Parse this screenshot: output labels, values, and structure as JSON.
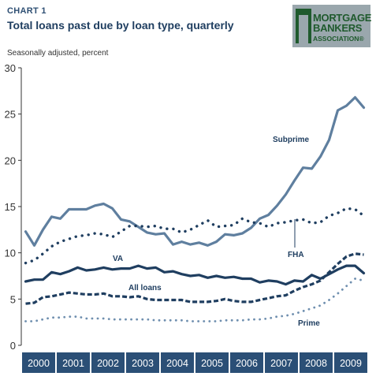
{
  "header": {
    "label": "CHART 1",
    "title": "Total loans past due by loan type, quarterly",
    "subtitle": "Seasonally adjusted, percent"
  },
  "logo": {
    "line1": "MORTGAGE",
    "line2": "BANKERS",
    "line3": "ASSOCIATION®",
    "color": "#1f5a2d",
    "background": "#9aa7ad"
  },
  "colors": {
    "series": "#1f3e60",
    "subprime": "#5f7f9f",
    "prime": "#6f8faf",
    "axis_band": "#2b4f76"
  },
  "chart_data": {
    "type": "line",
    "title": "Total loans past due by loan type, quarterly",
    "ylabel": "Seasonally adjusted, percent",
    "xlabel": "",
    "ylim": [
      0,
      30
    ],
    "yticks": [
      0,
      5,
      10,
      15,
      20,
      25,
      30
    ],
    "years": [
      "2000",
      "2001",
      "2002",
      "2003",
      "2004",
      "2005",
      "2006",
      "2007",
      "2008",
      "2009"
    ],
    "quarters_per_year": 4,
    "legend": "inline labels",
    "grid": false,
    "series": [
      {
        "name": "Subprime",
        "style": "solid-thick",
        "color": "#5f7f9f",
        "values": [
          12.3,
          10.8,
          12.5,
          13.9,
          13.7,
          14.7,
          14.7,
          14.7,
          15.1,
          15.3,
          14.8,
          13.6,
          13.4,
          12.8,
          12.2,
          12.0,
          12.1,
          10.9,
          11.2,
          10.9,
          11.1,
          10.8,
          11.2,
          12.0,
          11.9,
          12.1,
          12.7,
          13.7,
          14.1,
          15.1,
          16.3,
          17.8,
          19.2,
          19.1,
          20.4,
          22.2,
          25.4,
          25.9,
          26.8,
          25.7
        ]
      },
      {
        "name": "FHA",
        "style": "dotted-large",
        "color": "#1f3e60",
        "values": [
          8.9,
          9.2,
          9.9,
          10.7,
          11.2,
          11.5,
          11.8,
          11.9,
          12.1,
          12.0,
          11.7,
          12.3,
          12.9,
          12.9,
          12.8,
          12.9,
          12.6,
          12.6,
          12.2,
          12.5,
          13.0,
          13.5,
          12.8,
          12.9,
          13.0,
          13.7,
          13.3,
          13.2,
          12.8,
          13.2,
          13.3,
          13.5,
          13.6,
          13.2,
          13.3,
          14.0,
          14.3,
          14.8,
          14.7,
          14.0
        ]
      },
      {
        "name": "VA",
        "style": "solid",
        "color": "#1f3e60",
        "values": [
          6.9,
          7.1,
          7.1,
          7.9,
          7.7,
          8.0,
          8.4,
          8.1,
          8.2,
          8.4,
          8.2,
          8.3,
          8.3,
          8.6,
          8.3,
          8.4,
          7.9,
          8.0,
          7.7,
          7.5,
          7.6,
          7.3,
          7.5,
          7.3,
          7.4,
          7.2,
          7.2,
          6.8,
          7.0,
          6.9,
          6.6,
          7.0,
          6.9,
          7.6,
          7.2,
          7.7,
          8.2,
          8.6,
          8.6,
          7.8
        ]
      },
      {
        "name": "All loans",
        "style": "dashed",
        "color": "#1f3e60",
        "values": [
          4.5,
          4.6,
          5.2,
          5.3,
          5.5,
          5.7,
          5.6,
          5.5,
          5.5,
          5.6,
          5.3,
          5.3,
          5.2,
          5.3,
          5.0,
          4.9,
          4.9,
          4.9,
          4.9,
          4.7,
          4.7,
          4.7,
          4.8,
          5.0,
          4.8,
          4.7,
          4.7,
          4.9,
          5.1,
          5.3,
          5.4,
          5.9,
          6.3,
          6.6,
          7.0,
          7.9,
          8.8,
          9.6,
          9.9,
          9.8
        ]
      },
      {
        "name": "Prime",
        "style": "dotted-small",
        "color": "#6f8faf",
        "values": [
          2.6,
          2.6,
          2.8,
          3.0,
          3.0,
          3.1,
          3.1,
          2.9,
          2.9,
          2.9,
          2.8,
          2.8,
          2.8,
          2.8,
          2.8,
          2.7,
          2.7,
          2.7,
          2.7,
          2.6,
          2.6,
          2.6,
          2.6,
          2.7,
          2.7,
          2.7,
          2.8,
          2.8,
          2.9,
          3.1,
          3.2,
          3.4,
          3.7,
          4.0,
          4.3,
          4.9,
          5.6,
          6.4,
          7.2,
          7.0
        ]
      }
    ]
  }
}
